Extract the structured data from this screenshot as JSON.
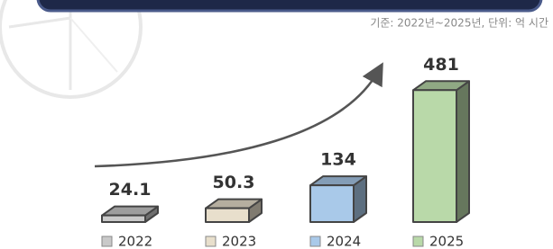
{
  "chart_data": {
    "type": "bar3d",
    "note": "기준: 2022년~2025년, 단위: 억 시간",
    "categories": [
      "2022",
      "2023",
      "2024",
      "2025"
    ],
    "values": [
      24.1,
      50.3,
      134,
      481
    ],
    "colors": [
      "#c9c9c9",
      "#e8dfcc",
      "#a9c9e9",
      "#b9d9a9"
    ]
  }
}
